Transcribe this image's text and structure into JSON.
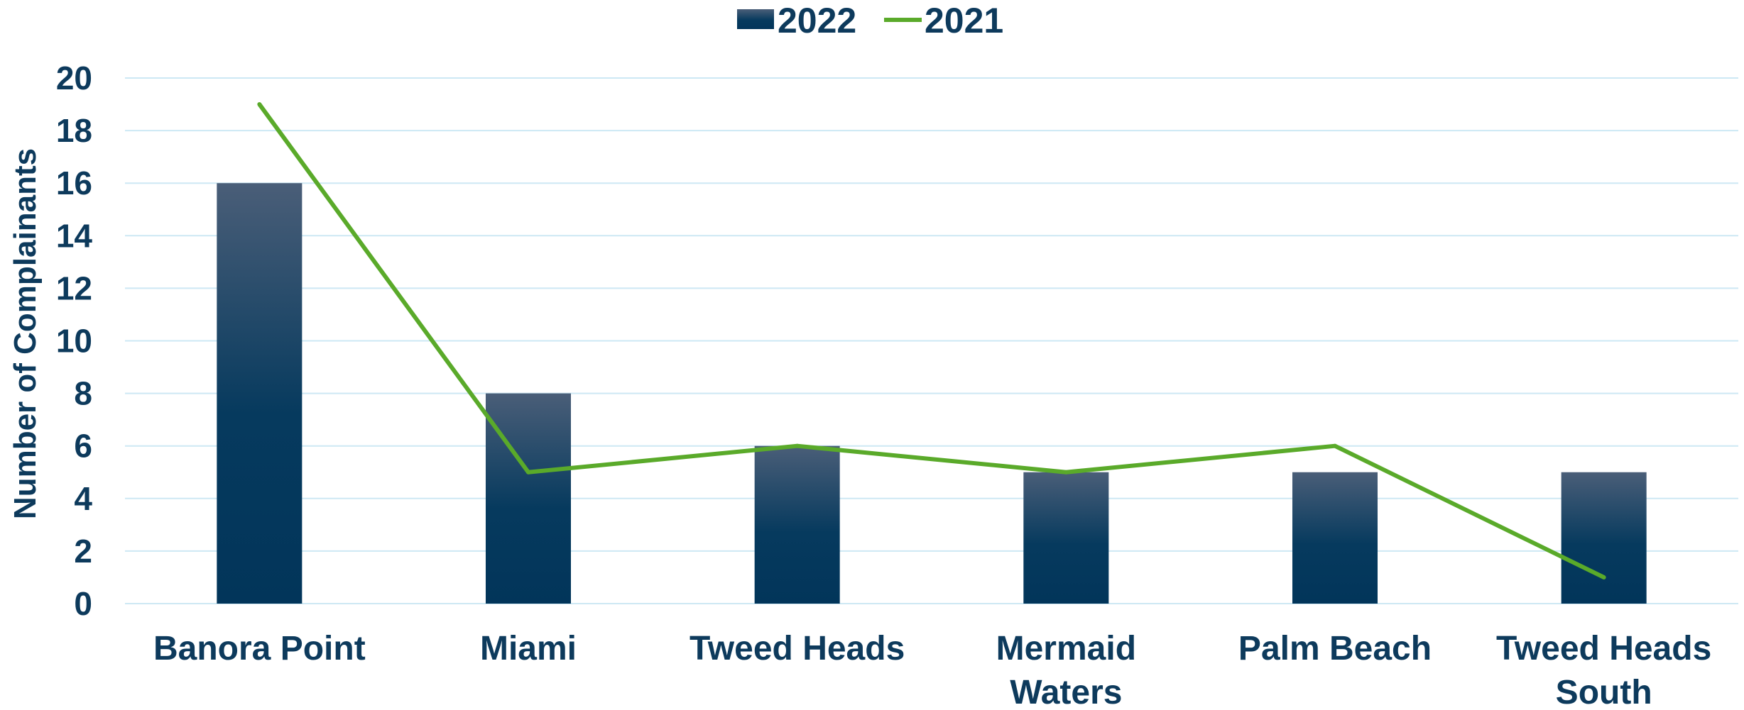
{
  "chart_data": {
    "type": "bar",
    "categories": [
      "Banora Point",
      "Miami",
      "Tweed Heads",
      "Mermaid Waters",
      "Palm Beach",
      "Tweed Heads South"
    ],
    "category_lines": [
      [
        "Banora Point"
      ],
      [
        "Miami"
      ],
      [
        "Tweed Heads"
      ],
      [
        "Mermaid",
        "Waters"
      ],
      [
        "Palm Beach"
      ],
      [
        "Tweed Heads",
        "South"
      ]
    ],
    "series": [
      {
        "name": "2022",
        "type": "bar",
        "values": [
          16,
          8,
          6,
          5,
          5,
          5
        ],
        "color": "#04365a"
      },
      {
        "name": "2021",
        "type": "line",
        "values": [
          19,
          5,
          6,
          5,
          6,
          1
        ],
        "color": "#5aaa2a"
      }
    ],
    "ylabel": "Number of Complainants",
    "xlabel": "",
    "ylim": [
      0,
      20
    ],
    "yticks": [
      0,
      2,
      4,
      6,
      8,
      10,
      12,
      14,
      16,
      18,
      20
    ],
    "grid": true,
    "gridline_color": "#cde8f4",
    "text_color": "#0d3a5c",
    "legend_position": "top-center"
  }
}
